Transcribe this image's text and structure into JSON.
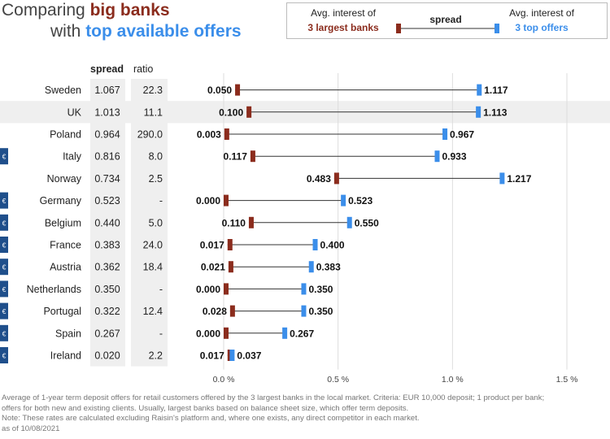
{
  "title": {
    "line1_prefix": "Comparing ",
    "line1_highlight": "big banks",
    "line2_prefix": "with ",
    "line2_highlight": "top available offers"
  },
  "legend": {
    "left_line1": "Avg. interest of",
    "left_line2": "3 largest banks",
    "middle": "spread",
    "right_line1": "Avg. interest of",
    "right_line2": "3 top offers"
  },
  "columns": {
    "spread": "spread",
    "ratio": "ratio"
  },
  "euro_symbol": "€",
  "colors": {
    "big_banks": "#8b2c1d",
    "top_offers": "#3b8eea",
    "euro_badge": "#1f4f8b",
    "connector": "#333333",
    "column_bg": "#efefef",
    "row_highlight": "#efefef"
  },
  "chart_data": {
    "type": "dumbbell",
    "x_unit": "%",
    "xlim": [
      0,
      1.5
    ],
    "x_ticks": [
      "0.0 %",
      "0.5 %",
      "1.0 %",
      "1.5 %"
    ],
    "x_tick_values": [
      0,
      0.5,
      1.0,
      1.5
    ],
    "series": [
      {
        "name": "3 largest banks"
      },
      {
        "name": "3 top offers"
      }
    ],
    "rows": [
      {
        "country": "Sweden",
        "spread": "1.067",
        "ratio": "22.3",
        "big": 0.05,
        "big_label": "0.050",
        "top": 1.117,
        "top_label": "1.117",
        "euro": false,
        "highlight": false
      },
      {
        "country": "UK",
        "spread": "1.013",
        "ratio": "11.1",
        "big": 0.1,
        "big_label": "0.100",
        "top": 1.113,
        "top_label": "1.113",
        "euro": false,
        "highlight": true
      },
      {
        "country": "Poland",
        "spread": "0.964",
        "ratio": "290.0",
        "big": 0.003,
        "big_label": "0.003",
        "top": 0.967,
        "top_label": "0.967",
        "euro": false,
        "highlight": false
      },
      {
        "country": "Italy",
        "spread": "0.816",
        "ratio": "8.0",
        "big": 0.117,
        "big_label": "0.117",
        "top": 0.933,
        "top_label": "0.933",
        "euro": true,
        "highlight": false
      },
      {
        "country": "Norway",
        "spread": "0.734",
        "ratio": "2.5",
        "big": 0.483,
        "big_label": "0.483",
        "top": 1.217,
        "top_label": "1.217",
        "euro": false,
        "highlight": false
      },
      {
        "country": "Germany",
        "spread": "0.523",
        "ratio": "-",
        "big": 0.0,
        "big_label": "0.000",
        "top": 0.523,
        "top_label": "0.523",
        "euro": true,
        "highlight": false
      },
      {
        "country": "Belgium",
        "spread": "0.440",
        "ratio": "5.0",
        "big": 0.11,
        "big_label": "0.110",
        "top": 0.55,
        "top_label": "0.550",
        "euro": true,
        "highlight": false
      },
      {
        "country": "France",
        "spread": "0.383",
        "ratio": "24.0",
        "big": 0.017,
        "big_label": "0.017",
        "top": 0.4,
        "top_label": "0.400",
        "euro": true,
        "highlight": false
      },
      {
        "country": "Austria",
        "spread": "0.362",
        "ratio": "18.4",
        "big": 0.021,
        "big_label": "0.021",
        "top": 0.383,
        "top_label": "0.383",
        "euro": true,
        "highlight": false
      },
      {
        "country": "Netherlands",
        "spread": "0.350",
        "ratio": "-",
        "big": 0.0,
        "big_label": "0.000",
        "top": 0.35,
        "top_label": "0.350",
        "euro": true,
        "highlight": false
      },
      {
        "country": "Portugal",
        "spread": "0.322",
        "ratio": "12.4",
        "big": 0.028,
        "big_label": "0.028",
        "top": 0.35,
        "top_label": "0.350",
        "euro": true,
        "highlight": false
      },
      {
        "country": "Spain",
        "spread": "0.267",
        "ratio": "-",
        "big": 0.0,
        "big_label": "0.000",
        "top": 0.267,
        "top_label": "0.267",
        "euro": true,
        "highlight": false
      },
      {
        "country": "Ireland",
        "spread": "0.020",
        "ratio": "2.2",
        "big": 0.017,
        "big_label": "0.017",
        "top": 0.037,
        "top_label": "0.037",
        "euro": true,
        "highlight": false
      }
    ]
  },
  "footnote": {
    "line1": "Average of 1-year term deposit offers for retail customers offered by the 3 largest banks in the local market. Criteria: EUR 10,000 deposit; 1 product per bank;",
    "line2": "offers for both new and existing clients. Usually, largest banks based on balance sheet size, which offer term deposits.",
    "line3": "Note: These rates are calculated excluding Raisin's platform and, where one exists, any direct competitor in each market.",
    "line4": "as of 10/08/2021"
  }
}
